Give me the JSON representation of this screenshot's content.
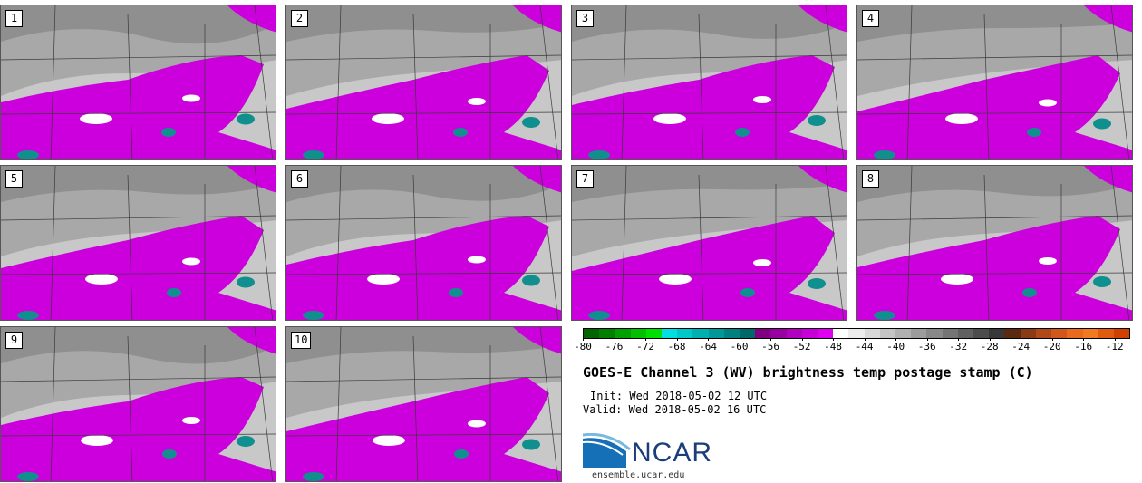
{
  "panels": [
    {
      "label": "1"
    },
    {
      "label": "2"
    },
    {
      "label": "3"
    },
    {
      "label": "4"
    },
    {
      "label": "5"
    },
    {
      "label": "6"
    },
    {
      "label": "7"
    },
    {
      "label": "8"
    },
    {
      "label": "9"
    },
    {
      "label": "10"
    }
  ],
  "colorbar": {
    "ticks": [
      "-80",
      "-76",
      "-72",
      "-68",
      "-64",
      "-60",
      "-56",
      "-52",
      "-48",
      "-44",
      "-40",
      "-36",
      "-32",
      "-28",
      "-24",
      "-20",
      "-16",
      "-12"
    ],
    "range": [
      -80,
      -10
    ],
    "colors": [
      "#006600",
      "#007f00",
      "#00a000",
      "#00c000",
      "#00e000",
      "#00e0e0",
      "#00c8c8",
      "#00b0b0",
      "#009898",
      "#008080",
      "#006868",
      "#800080",
      "#9900a0",
      "#b000c0",
      "#c800d8",
      "#e000f0",
      "#ffffff",
      "#ebebeb",
      "#d8d8d8",
      "#c4c4c4",
      "#b0b0b0",
      "#9c9c9c",
      "#888888",
      "#747474",
      "#606060",
      "#4c4c4c",
      "#383838",
      "#5a2a10",
      "#8a3a14",
      "#b04818",
      "#d0581c",
      "#e86a1e",
      "#f07a20",
      "#e05a10",
      "#d04000"
    ]
  },
  "title": "GOES-E Channel 3 (WV) brightness temp postage stamp (C)",
  "init": "Init: Wed 2018-05-02 12 UTC",
  "valid": "Valid: Wed 2018-05-02 16 UTC",
  "logo": {
    "text": "NCAR",
    "url": "ensemble.ucar.edu"
  }
}
